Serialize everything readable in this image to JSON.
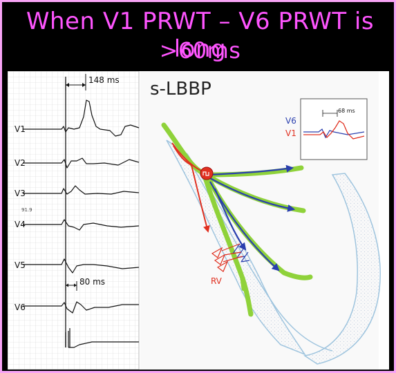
{
  "title": {
    "line1": "When V1 PRWT – V6 PRWT is long",
    "line2": ">60ms"
  },
  "ecg": {
    "leads": [
      "V1",
      "V2",
      "V3",
      "V4",
      "V5",
      "V6"
    ],
    "interval_top": "148 ms",
    "interval_bottom": "80 ms",
    "small_mark": "91.9"
  },
  "diagram": {
    "label": "s-LBBP",
    "rv_label": "RV",
    "inset": {
      "lead_top": "V6",
      "lead_bottom": "V1",
      "interval": "68 ms"
    }
  },
  "colors": {
    "title_text": "#ff55ff",
    "frame_border": "#f7a3f5",
    "conduction_red": "#e03020",
    "v6_blue": "#2a3fae",
    "bundle_green": "#8fd23a"
  }
}
